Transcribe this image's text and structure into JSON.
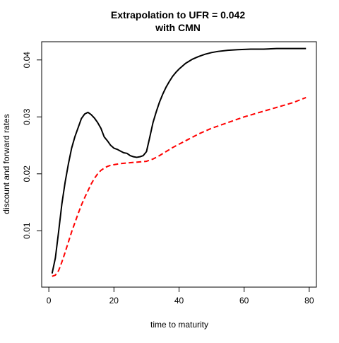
{
  "chart_data": {
    "type": "line",
    "title": "Extrapolation to UFR = 0.042",
    "subtitle": "with CMN",
    "xlabel": "time to maturity",
    "ylabel": "discount and forward rates",
    "xlim": [
      -2.2,
      82.2
    ],
    "ylim": [
      0.0001,
      0.0432
    ],
    "x_ticks": [
      0,
      20,
      40,
      60,
      80
    ],
    "y_ticks": [
      0.01,
      0.02,
      0.03,
      0.04
    ],
    "x_tick_labels": [
      "0",
      "20",
      "40",
      "60",
      "80"
    ],
    "y_tick_labels": [
      "0.01",
      "0.02",
      "0.03",
      "0.04"
    ],
    "grid": false,
    "legend": "none",
    "series": [
      {
        "color": "#000000",
        "dash": "solid",
        "points": [
          [
            1,
            0.0025
          ],
          [
            2,
            0.0052
          ],
          [
            3,
            0.0098
          ],
          [
            4,
            0.0147
          ],
          [
            5,
            0.0185
          ],
          [
            6,
            0.0217
          ],
          [
            7,
            0.0245
          ],
          [
            8,
            0.0265
          ],
          [
            9,
            0.0281
          ],
          [
            10,
            0.0297
          ],
          [
            11,
            0.0305
          ],
          [
            12,
            0.0308
          ],
          [
            13,
            0.0304
          ],
          [
            14,
            0.0298
          ],
          [
            15,
            0.029
          ],
          [
            16,
            0.028
          ],
          [
            17,
            0.0265
          ],
          [
            18,
            0.0258
          ],
          [
            19,
            0.025
          ],
          [
            20,
            0.0245
          ],
          [
            21,
            0.0243
          ],
          [
            22,
            0.024
          ],
          [
            23,
            0.0237
          ],
          [
            24,
            0.0236
          ],
          [
            25,
            0.0232
          ],
          [
            26,
            0.023
          ],
          [
            27,
            0.0229
          ],
          [
            28,
            0.023
          ],
          [
            29,
            0.0232
          ],
          [
            30,
            0.0239
          ],
          [
            31,
            0.0264
          ],
          [
            32,
            0.029
          ],
          [
            33,
            0.0309
          ],
          [
            34,
            0.0326
          ],
          [
            35,
            0.034
          ],
          [
            36,
            0.0352
          ],
          [
            37,
            0.0362
          ],
          [
            38,
            0.0371
          ],
          [
            39,
            0.0378
          ],
          [
            40,
            0.0384
          ],
          [
            42,
            0.0394
          ],
          [
            44,
            0.0401
          ],
          [
            46,
            0.0406
          ],
          [
            48,
            0.041
          ],
          [
            50,
            0.0413
          ],
          [
            52,
            0.0415
          ],
          [
            55,
            0.0417
          ],
          [
            58,
            0.0418
          ],
          [
            62,
            0.0419
          ],
          [
            66,
            0.0419
          ],
          [
            70,
            0.042
          ],
          [
            75,
            0.042
          ],
          [
            79,
            0.042
          ]
        ]
      },
      {
        "color": "#ff0000",
        "dash": "dashed",
        "points": [
          [
            1,
            0.002
          ],
          [
            2,
            0.0022
          ],
          [
            3,
            0.003
          ],
          [
            4,
            0.0045
          ],
          [
            5,
            0.0062
          ],
          [
            6,
            0.008
          ],
          [
            7,
            0.0098
          ],
          [
            8,
            0.0114
          ],
          [
            9,
            0.013
          ],
          [
            10,
            0.0145
          ],
          [
            11,
            0.0158
          ],
          [
            12,
            0.017
          ],
          [
            13,
            0.0182
          ],
          [
            14,
            0.0192
          ],
          [
            15,
            0.02
          ],
          [
            16,
            0.0206
          ],
          [
            17,
            0.021
          ],
          [
            18,
            0.0213
          ],
          [
            19,
            0.0215
          ],
          [
            20,
            0.0216
          ],
          [
            22,
            0.0218
          ],
          [
            24,
            0.0219
          ],
          [
            26,
            0.022
          ],
          [
            28,
            0.0221
          ],
          [
            30,
            0.0222
          ],
          [
            32,
            0.0226
          ],
          [
            34,
            0.0232
          ],
          [
            36,
            0.0239
          ],
          [
            38,
            0.0246
          ],
          [
            40,
            0.0252
          ],
          [
            42,
            0.0258
          ],
          [
            44,
            0.0264
          ],
          [
            46,
            0.027
          ],
          [
            48,
            0.0275
          ],
          [
            50,
            0.028
          ],
          [
            52,
            0.0284
          ],
          [
            55,
            0.029
          ],
          [
            58,
            0.0296
          ],
          [
            60,
            0.03
          ],
          [
            63,
            0.0305
          ],
          [
            66,
            0.031
          ],
          [
            69,
            0.0315
          ],
          [
            72,
            0.032
          ],
          [
            75,
            0.0325
          ],
          [
            79,
            0.0334
          ]
        ]
      }
    ]
  }
}
